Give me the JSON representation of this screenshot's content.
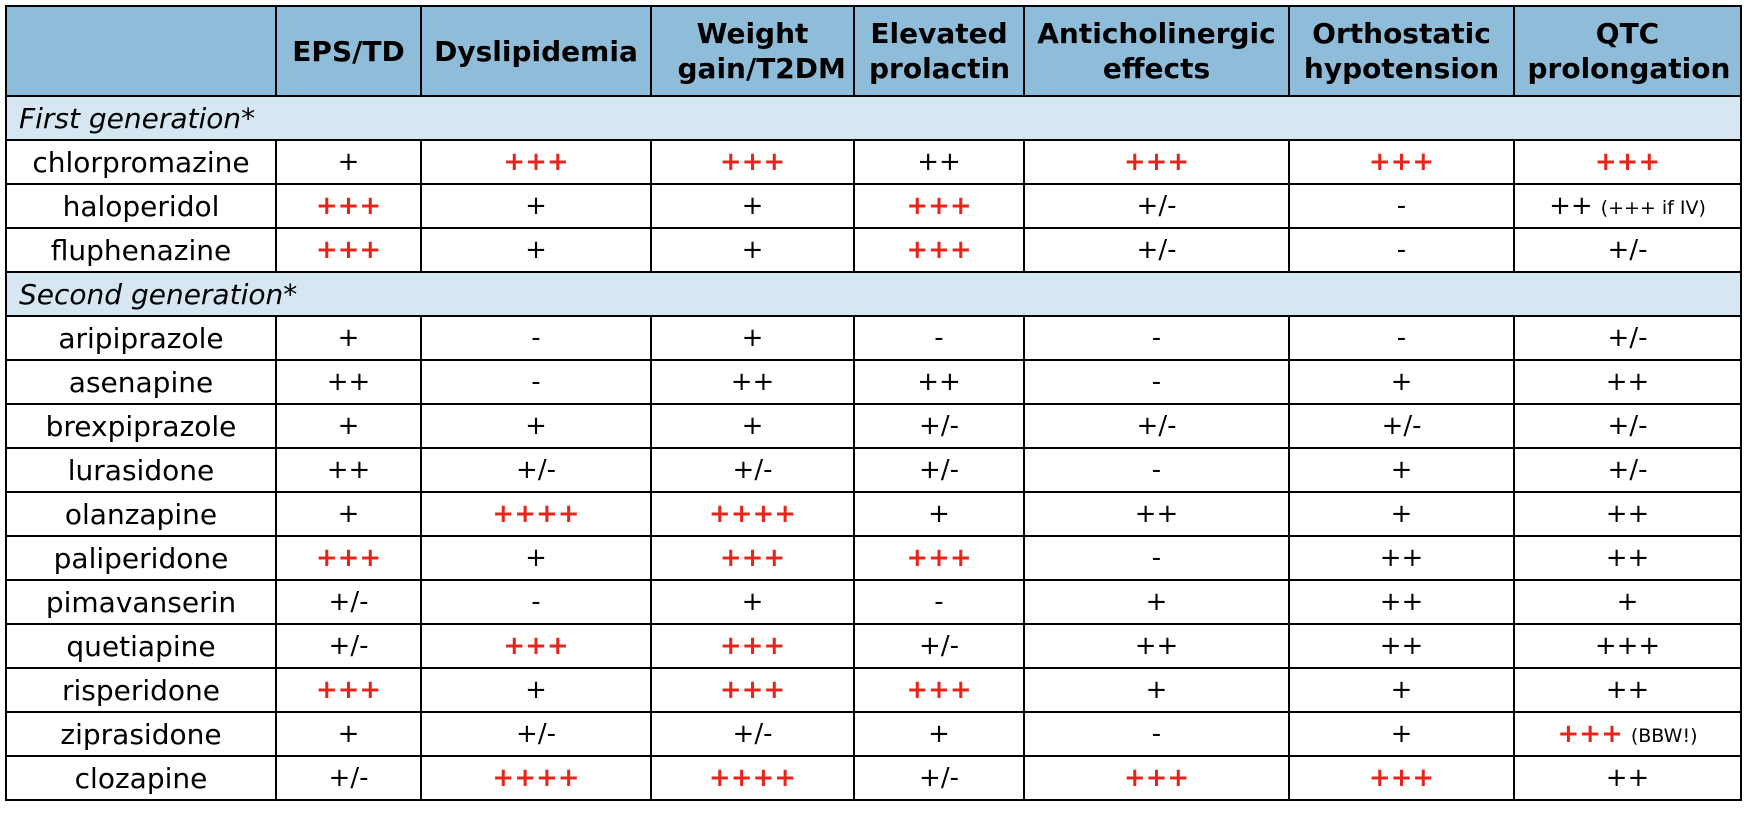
{
  "colors": {
    "header_bg": "#8fbcd8",
    "section_bg": "#d6e7f1",
    "highlight_text": "#e8251d"
  },
  "headers": [
    "",
    "EPS/TD",
    "Dyslipidemia",
    "Weight gain/T2DM",
    "Elevated prolactin",
    "Anticholinergic effects",
    "Orthostatic hypotension",
    "QTC prolongation"
  ],
  "sections": [
    {
      "title": "First generation*",
      "rows": [
        {
          "drug": "chlorpromazine",
          "cells": [
            {
              "v": "+",
              "red": false
            },
            {
              "v": "+++",
              "red": true
            },
            {
              "v": "+++",
              "red": true
            },
            {
              "v": "++",
              "red": false
            },
            {
              "v": "+++",
              "red": true
            },
            {
              "v": "+++",
              "red": true
            },
            {
              "v": "+++",
              "red": true
            }
          ]
        },
        {
          "drug": "haloperidol",
          "cells": [
            {
              "v": "+++",
              "red": true
            },
            {
              "v": "+",
              "red": false
            },
            {
              "v": "+",
              "red": false
            },
            {
              "v": "+++",
              "red": true
            },
            {
              "v": "+/-",
              "red": false
            },
            {
              "v": "-",
              "red": false
            },
            {
              "v": "++",
              "red": false,
              "note": "(+++ if IV)"
            }
          ]
        },
        {
          "drug": "fluphenazine",
          "cells": [
            {
              "v": "+++",
              "red": true
            },
            {
              "v": "+",
              "red": false
            },
            {
              "v": "+",
              "red": false
            },
            {
              "v": "+++",
              "red": true
            },
            {
              "v": "+/-",
              "red": false
            },
            {
              "v": "-",
              "red": false
            },
            {
              "v": "+/-",
              "red": false
            }
          ]
        }
      ]
    },
    {
      "title": "Second generation*",
      "rows": [
        {
          "drug": "aripiprazole",
          "cells": [
            {
              "v": "+",
              "red": false
            },
            {
              "v": "-",
              "red": false
            },
            {
              "v": "+",
              "red": false
            },
            {
              "v": "-",
              "red": false
            },
            {
              "v": "-",
              "red": false
            },
            {
              "v": "-",
              "red": false
            },
            {
              "v": "+/-",
              "red": false
            }
          ]
        },
        {
          "drug": "asenapine",
          "cells": [
            {
              "v": "++",
              "red": false
            },
            {
              "v": "-",
              "red": false
            },
            {
              "v": "++",
              "red": false
            },
            {
              "v": "++",
              "red": false
            },
            {
              "v": "-",
              "red": false
            },
            {
              "v": "+",
              "red": false
            },
            {
              "v": "++",
              "red": false
            }
          ]
        },
        {
          "drug": "brexpiprazole",
          "cells": [
            {
              "v": "+",
              "red": false
            },
            {
              "v": "+",
              "red": false
            },
            {
              "v": "+",
              "red": false
            },
            {
              "v": "+/-",
              "red": false
            },
            {
              "v": "+/-",
              "red": false
            },
            {
              "v": "+/-",
              "red": false
            },
            {
              "v": "+/-",
              "red": false
            }
          ]
        },
        {
          "drug": "lurasidone",
          "cells": [
            {
              "v": "++",
              "red": false
            },
            {
              "v": "+/-",
              "red": false
            },
            {
              "v": "+/-",
              "red": false
            },
            {
              "v": "+/-",
              "red": false
            },
            {
              "v": "-",
              "red": false
            },
            {
              "v": "+",
              "red": false
            },
            {
              "v": "+/-",
              "red": false
            }
          ]
        },
        {
          "drug": "olanzapine",
          "cells": [
            {
              "v": "+",
              "red": false
            },
            {
              "v": "++++",
              "red": true
            },
            {
              "v": "++++",
              "red": true
            },
            {
              "v": "+",
              "red": false
            },
            {
              "v": "++",
              "red": false
            },
            {
              "v": "+",
              "red": false
            },
            {
              "v": "++",
              "red": false
            }
          ]
        },
        {
          "drug": "paliperidone",
          "cells": [
            {
              "v": "+++",
              "red": true
            },
            {
              "v": "+",
              "red": false
            },
            {
              "v": "+++",
              "red": true
            },
            {
              "v": "+++",
              "red": true
            },
            {
              "v": "-",
              "red": false
            },
            {
              "v": "++",
              "red": false
            },
            {
              "v": "++",
              "red": false
            }
          ]
        },
        {
          "drug": "pimavanserin",
          "cells": [
            {
              "v": "+/-",
              "red": false
            },
            {
              "v": "-",
              "red": false
            },
            {
              "v": "+",
              "red": false
            },
            {
              "v": "-",
              "red": false
            },
            {
              "v": "+",
              "red": false
            },
            {
              "v": "++",
              "red": false
            },
            {
              "v": "+",
              "red": false
            }
          ]
        },
        {
          "drug": "quetiapine",
          "cells": [
            {
              "v": "+/-",
              "red": false
            },
            {
              "v": "+++",
              "red": true
            },
            {
              "v": "+++",
              "red": true
            },
            {
              "v": "+/-",
              "red": false
            },
            {
              "v": "++",
              "red": false
            },
            {
              "v": "++",
              "red": false
            },
            {
              "v": "+++",
              "red": false
            }
          ]
        },
        {
          "drug": "risperidone",
          "cells": [
            {
              "v": "+++",
              "red": true
            },
            {
              "v": "+",
              "red": false
            },
            {
              "v": "+++",
              "red": true
            },
            {
              "v": "+++",
              "red": true
            },
            {
              "v": "+",
              "red": false
            },
            {
              "v": "+",
              "red": false
            },
            {
              "v": "++",
              "red": false
            }
          ]
        },
        {
          "drug": "ziprasidone",
          "cells": [
            {
              "v": "+",
              "red": false
            },
            {
              "v": "+/-",
              "red": false
            },
            {
              "v": "+/-",
              "red": false
            },
            {
              "v": "+",
              "red": false
            },
            {
              "v": "-",
              "red": false
            },
            {
              "v": "+",
              "red": false
            },
            {
              "v": "+++",
              "red": true,
              "note": "(BBW!)"
            }
          ]
        },
        {
          "drug": "clozapine",
          "cells": [
            {
              "v": "+/-",
              "red": false
            },
            {
              "v": "++++",
              "red": true
            },
            {
              "v": "++++",
              "red": true
            },
            {
              "v": "+/-",
              "red": false
            },
            {
              "v": "+++",
              "red": true
            },
            {
              "v": "+++",
              "red": true
            },
            {
              "v": "++",
              "red": false
            }
          ]
        }
      ]
    }
  ]
}
